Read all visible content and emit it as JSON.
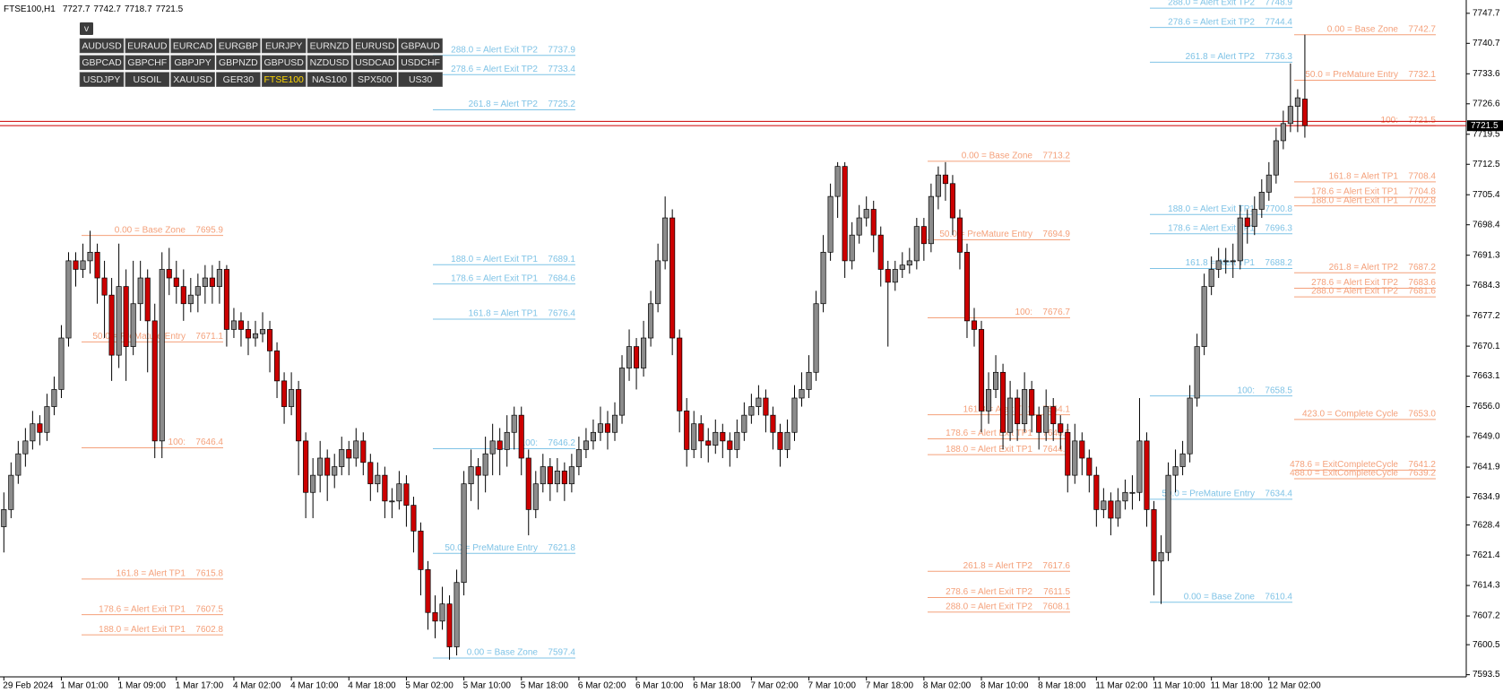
{
  "chart_data": {
    "type": "candlestick",
    "header": {
      "symbol": "FTSE100,H1",
      "ohlc": [
        7727.7,
        7742.7,
        7718.7,
        7721.5
      ]
    },
    "toggle": "v",
    "symbols": [
      "AUDUSD",
      "EURAUD",
      "EURCAD",
      "EURGBP",
      "EURJPY",
      "EURNZD",
      "EURUSD",
      "GBPAUD",
      "GBPCAD",
      "GBPCHF",
      "GBPJPY",
      "GBPNZD",
      "GBPUSD",
      "NZDUSD",
      "USDCAD",
      "USDCHF",
      "USDJPY",
      "USOIL",
      "XAUUSD",
      "GER30",
      "FTSE100",
      "NAS100",
      "SPX500",
      "US30"
    ],
    "active_symbol": "FTSE100",
    "bull_color": "#8c8c8c",
    "bear_color": "#cc0000",
    "ylim": [
      7593.0,
      7750.8
    ],
    "yticks": [
      7747.7,
      7740.7,
      7733.6,
      7726.6,
      7719.5,
      7712.5,
      7705.4,
      7698.4,
      7691.3,
      7684.3,
      7677.2,
      7670.1,
      7663.1,
      {
        "value": 7656,
        "label": "7656.0"
      },
      {
        "value": 7649,
        "label": "7649.0"
      },
      7641.9,
      7634.9,
      7628.4,
      7621.4,
      7614.3,
      7607.2,
      7600.5,
      7593.5
    ],
    "x_labels": [
      "29 Feb 2024",
      "1 Mar 01:00",
      "1 Mar 09:00",
      "1 Mar 17:00",
      "4 Mar 02:00",
      "4 Mar 10:00",
      "4 Mar 18:00",
      "5 Mar 02:00",
      "5 Mar 10:00",
      "5 Mar 18:00",
      "6 Mar 02:00",
      "6 Mar 10:00",
      "6 Mar 18:00",
      "7 Mar 02:00",
      "7 Mar 10:00",
      "7 Mar 18:00",
      "8 Mar 02:00",
      "8 Mar 10:00",
      "8 Mar 18:00",
      "11 Mar 02:00",
      "11 Mar 10:00",
      "11 Mar 18:00",
      "12 Mar 02:00"
    ],
    "bid": 7721.5,
    "ask": 7722.5,
    "price_color": "#cc0000",
    "candles": [
      [
        7628,
        7636,
        7622,
        7632
      ],
      [
        7632,
        7643,
        7630,
        7640
      ],
      [
        7640,
        7648,
        7638,
        7645
      ],
      [
        7645,
        7651,
        7642,
        7648
      ],
      [
        7648,
        7655,
        7646,
        7652
      ],
      [
        7652,
        7654,
        7647,
        7650
      ],
      [
        7650,
        7659,
        7648,
        7656
      ],
      [
        7656,
        7663,
        7654,
        7660
      ],
      [
        7660,
        7675,
        7658,
        7672
      ],
      [
        7672,
        7692,
        7670,
        7690
      ],
      [
        7690,
        7692,
        7684,
        7688
      ],
      [
        7688,
        7694,
        7686,
        7690
      ],
      [
        7690,
        7697,
        7687,
        7692
      ],
      [
        7692,
        7694,
        7680,
        7686
      ],
      [
        7686,
        7690,
        7672,
        7682
      ],
      [
        7682,
        7686,
        7662,
        7668
      ],
      [
        7668,
        7694,
        7665,
        7684
      ],
      [
        7684,
        7688,
        7662,
        7670
      ],
      [
        7670,
        7690,
        7668,
        7680
      ],
      [
        7680,
        7690,
        7676,
        7686
      ],
      [
        7686,
        7688,
        7664,
        7676
      ],
      [
        7676,
        7680,
        7644,
        7648
      ],
      [
        7648,
        7692,
        7644,
        7688
      ],
      [
        7688,
        7693,
        7682,
        7686
      ],
      [
        7686,
        7690,
        7680,
        7684
      ],
      [
        7684,
        7688,
        7676,
        7680
      ],
      [
        7680,
        7686,
        7678,
        7682
      ],
      [
        7682,
        7687,
        7678,
        7684
      ],
      [
        7684,
        7689,
        7680,
        7686
      ],
      [
        7686,
        7689,
        7680,
        7684
      ],
      [
        7684,
        7690,
        7680,
        7688
      ],
      [
        7688,
        7689,
        7670,
        7674
      ],
      [
        7674,
        7679,
        7672,
        7676
      ],
      [
        7676,
        7678,
        7670,
        7674
      ],
      [
        7674,
        7676,
        7668,
        7672
      ],
      [
        7672,
        7676,
        7670,
        7673
      ],
      [
        7673,
        7678,
        7671,
        7674
      ],
      [
        7674,
        7676,
        7664,
        7669
      ],
      [
        7669,
        7671,
        7658,
        7662
      ],
      [
        7662,
        7664,
        7652,
        7656
      ],
      [
        7656,
        7664,
        7654,
        7660
      ],
      [
        7660,
        7662,
        7640,
        7648
      ],
      [
        7648,
        7650,
        7630,
        7636
      ],
      [
        7636,
        7644,
        7630,
        7640
      ],
      [
        7640,
        7648,
        7636,
        7644
      ],
      [
        7644,
        7646,
        7634,
        7640
      ],
      [
        7640,
        7645,
        7637,
        7642
      ],
      [
        7642,
        7649,
        7640,
        7646
      ],
      [
        7646,
        7648,
        7640,
        7644
      ],
      [
        7644,
        7651,
        7642,
        7648
      ],
      [
        7648,
        7650,
        7640,
        7643
      ],
      [
        7643,
        7645,
        7634,
        7638
      ],
      [
        7638,
        7643,
        7636,
        7640
      ],
      [
        7640,
        7642,
        7630,
        7634
      ],
      [
        7634,
        7637,
        7630,
        7634
      ],
      [
        7634,
        7641,
        7632,
        7638
      ],
      [
        7638,
        7640,
        7628,
        7633
      ],
      [
        7633,
        7635,
        7622,
        7627
      ],
      [
        7627,
        7629,
        7612,
        7618
      ],
      [
        7618,
        7620,
        7604,
        7608
      ],
      [
        7608,
        7612,
        7602,
        7606
      ],
      [
        7606,
        7614,
        7604,
        7610
      ],
      [
        7610,
        7612,
        7597,
        7600
      ],
      [
        7600,
        7618,
        7598,
        7615
      ],
      [
        7615,
        7641,
        7612,
        7638
      ],
      [
        7638,
        7646,
        7634,
        7642
      ],
      [
        7642,
        7644,
        7632,
        7640
      ],
      [
        7640,
        7649,
        7636,
        7645
      ],
      [
        7645,
        7652,
        7640,
        7648
      ],
      [
        7648,
        7651,
        7640,
        7646
      ],
      [
        7646,
        7654,
        7642,
        7650
      ],
      [
        7650,
        7656,
        7646,
        7654
      ],
      [
        7654,
        7656,
        7640,
        7644
      ],
      [
        7644,
        7646,
        7626,
        7632
      ],
      [
        7632,
        7641,
        7630,
        7638
      ],
      [
        7638,
        7645,
        7636,
        7642
      ],
      [
        7642,
        7644,
        7634,
        7638
      ],
      [
        7638,
        7644,
        7636,
        7641
      ],
      [
        7641,
        7643,
        7634,
        7638
      ],
      [
        7638,
        7645,
        7636,
        7642
      ],
      [
        7642,
        7649,
        7640,
        7646
      ],
      [
        7646,
        7651,
        7644,
        7648
      ],
      [
        7648,
        7653,
        7646,
        7650
      ],
      [
        7650,
        7656,
        7648,
        7652
      ],
      [
        7652,
        7655,
        7646,
        7650
      ],
      [
        7650,
        7657,
        7648,
        7654
      ],
      [
        7654,
        7668,
        7652,
        7665
      ],
      [
        7665,
        7674,
        7662,
        7670
      ],
      [
        7670,
        7672,
        7660,
        7665
      ],
      [
        7665,
        7676,
        7663,
        7672
      ],
      [
        7672,
        7683,
        7670,
        7680
      ],
      [
        7680,
        7694,
        7678,
        7690
      ],
      [
        7690,
        7705,
        7688,
        7700
      ],
      [
        7700,
        7702,
        7668,
        7672
      ],
      [
        7672,
        7674,
        7650,
        7655
      ],
      [
        7655,
        7658,
        7642,
        7646
      ],
      [
        7646,
        7655,
        7644,
        7652
      ],
      [
        7652,
        7654,
        7644,
        7648
      ],
      [
        7648,
        7651,
        7643,
        7647
      ],
      [
        7647,
        7653,
        7645,
        7650
      ],
      [
        7650,
        7652,
        7644,
        7648
      ],
      [
        7648,
        7650,
        7642,
        7646
      ],
      [
        7646,
        7653,
        7644,
        7650
      ],
      [
        7650,
        7657,
        7648,
        7654
      ],
      [
        7654,
        7659,
        7652,
        7656
      ],
      [
        7656,
        7661,
        7654,
        7658
      ],
      [
        7658,
        7660,
        7650,
        7654
      ],
      [
        7654,
        7656,
        7646,
        7650
      ],
      [
        7650,
        7652,
        7642,
        7646
      ],
      [
        7646,
        7653,
        7644,
        7650
      ],
      [
        7650,
        7661,
        7648,
        7658
      ],
      [
        7658,
        7664,
        7656,
        7660
      ],
      [
        7660,
        7668,
        7658,
        7664
      ],
      [
        7664,
        7683,
        7662,
        7680
      ],
      [
        7680,
        7696,
        7678,
        7692
      ],
      [
        7692,
        7708,
        7690,
        7705
      ],
      [
        7705,
        7713,
        7700,
        7712
      ],
      [
        7712,
        7713,
        7686,
        7690
      ],
      [
        7690,
        7699,
        7688,
        7696
      ],
      [
        7696,
        7703,
        7694,
        7700
      ],
      [
        7700,
        7705,
        7698,
        7702
      ],
      [
        7702,
        7704,
        7692,
        7696
      ],
      [
        7696,
        7698,
        7684,
        7688
      ],
      [
        7688,
        7690,
        7670,
        7685
      ],
      [
        7685,
        7690,
        7683,
        7688
      ],
      [
        7688,
        7692,
        7686,
        7689
      ],
      [
        7689,
        7693,
        7687,
        7690
      ],
      [
        7690,
        7700,
        7688,
        7698
      ],
      [
        7698,
        7700,
        7690,
        7694
      ],
      [
        7694,
        7708,
        7692,
        7705
      ],
      [
        7705,
        7712,
        7702,
        7710
      ],
      [
        7710,
        7713,
        7704,
        7708
      ],
      [
        7708,
        7710,
        7696,
        7700
      ],
      [
        7700,
        7702,
        7688,
        7692
      ],
      [
        7692,
        7694,
        7672,
        7676
      ],
      [
        7676,
        7679,
        7670,
        7674
      ],
      [
        7674,
        7676,
        7650,
        7655
      ],
      [
        7655,
        7664,
        7652,
        7660
      ],
      [
        7660,
        7668,
        7658,
        7664
      ],
      [
        7664,
        7666,
        7646,
        7650
      ],
      [
        7650,
        7662,
        7648,
        7658
      ],
      [
        7658,
        7660,
        7648,
        7652
      ],
      [
        7652,
        7664,
        7650,
        7660
      ],
      [
        7660,
        7662,
        7650,
        7654
      ],
      [
        7654,
        7656,
        7646,
        7650
      ],
      [
        7650,
        7660,
        7648,
        7656
      ],
      [
        7656,
        7658,
        7648,
        7652
      ],
      [
        7652,
        7654,
        7646,
        7650
      ],
      [
        7650,
        7652,
        7636,
        7640
      ],
      [
        7640,
        7652,
        7638,
        7648
      ],
      [
        7648,
        7650,
        7640,
        7644
      ],
      [
        7644,
        7646,
        7636,
        7640
      ],
      [
        7640,
        7642,
        7628,
        7632
      ],
      [
        7632,
        7637,
        7630,
        7634
      ],
      [
        7634,
        7636,
        7626,
        7630
      ],
      [
        7630,
        7637,
        7628,
        7634
      ],
      [
        7634,
        7639,
        7632,
        7636
      ],
      [
        7636,
        7640,
        7632,
        7636
      ],
      [
        7636,
        7658,
        7634,
        7648
      ],
      [
        7648,
        7650,
        7628,
        7632
      ],
      [
        7632,
        7634,
        7612,
        7620
      ],
      [
        7620,
        7626,
        7610,
        7622
      ],
      [
        7622,
        7643,
        7620,
        7640
      ],
      [
        7640,
        7646,
        7636,
        7642
      ],
      [
        7642,
        7648,
        7640,
        7645
      ],
      [
        7645,
        7661,
        7643,
        7658
      ],
      [
        7658,
        7673,
        7656,
        7670
      ],
      [
        7670,
        7687,
        7668,
        7684
      ],
      [
        7684,
        7691,
        7682,
        7688
      ],
      [
        7688,
        7693,
        7686,
        7690
      ],
      [
        7690,
        7693,
        7687,
        7690
      ],
      [
        7690,
        7694,
        7686,
        7690
      ],
      [
        7690,
        7703,
        7688,
        7700
      ],
      [
        7700,
        7702,
        7694,
        7698
      ],
      [
        7698,
        7705,
        7696,
        7702
      ],
      [
        7702,
        7709,
        7700,
        7706
      ],
      [
        7706,
        7713,
        7704,
        7710
      ],
      [
        7710,
        7721,
        7708,
        7718
      ],
      [
        7718,
        7725,
        7716,
        7722
      ],
      [
        7722,
        7736,
        7720,
        7726
      ],
      [
        7726,
        7730,
        7720,
        7728
      ],
      [
        7727.7,
        7742.7,
        7718.7,
        7721.5
      ]
    ],
    "levels": [
      {
        "color": "#7fc3e6",
        "labels": [
          "288.0 = Alert Exit TP2",
          "278.6 = Alert Exit TP2",
          "261.8 = Alert TP2",
          "188.0 = Alert Exit TP1",
          "178.6 = Alert Exit TP1",
          "161.8 = Alert TP1",
          "100:",
          "50.0 = PreMature Entry",
          "0.00 = Base Zone"
        ],
        "values": [
          7737.9,
          7733.4,
          7725.2,
          7689.1,
          7684.6,
          7676.4,
          7646.2,
          7621.8,
          7597.4
        ],
        "value_labels": [
          "7737.9",
          "7733.4",
          "7725.2",
          "7689.1",
          "7684.6",
          "7676.4",
          "7646.2",
          "7621.8",
          "7597.4"
        ]
      },
      {
        "color": "#f4a07a",
        "labels": [
          "0.00 = Base Zone",
          "50.0 = PreMature Entry",
          "100:",
          "161.8 = Alert TP1",
          "178.6 = Alert Exit TP1",
          "188.0 = Alert Exit TP1"
        ],
        "values": [
          7695.9,
          7671.1,
          7646.4,
          7615.8,
          7607.5,
          7602.8
        ],
        "value_labels": [
          "7695.9",
          "7671.1",
          "7646.4",
          "7615.8",
          "7607.5",
          "7602.8"
        ]
      },
      {
        "color": "#f4a07a",
        "labels": [
          "0.00 = Base Zone",
          "50.0 = PreMature Entry",
          "100:",
          "161.8 = Alert TP1",
          "178.6 = Alert Exit TP1",
          "188.0 = Alert Exit TP1",
          "261.8 = Alert TP2",
          "278.6 = Alert Exit TP2",
          "288.0 = Alert Exit TP2"
        ],
        "values": [
          7713.2,
          7694.9,
          7676.7,
          7654.1,
          7648.5,
          7644.8,
          7617.6,
          7611.5,
          7608.1
        ],
        "value_labels": [
          "7713.2",
          "7694.9",
          "7676.7",
          "7654.1",
          "7648.5",
          "7644.8",
          "7617.6",
          "7611.5",
          "7608.1"
        ]
      },
      {
        "color": "#7fc3e6",
        "labels": [
          "288.0 = Alert Exit TP2",
          "278.6 = Alert Exit TP2",
          "261.8 = Alert TP2",
          "188.0 = Alert Exit TP1",
          "178.6 = Alert Exit TP1",
          "161.8 = Alert TP1",
          "100:",
          "50.0 = PreMature Entry",
          "0.00 = Base Zone"
        ],
        "values": [
          7748.9,
          7744.4,
          7736.3,
          7700.8,
          7696.3,
          7688.2,
          7658.5,
          7634.4,
          7610.4
        ],
        "value_labels": [
          "7748.9",
          "7744.4",
          "7736.3",
          "7700.8",
          "7696.3",
          "7688.2",
          "7658.5",
          "7634.4",
          "7610.4"
        ]
      },
      {
        "color": "#f4a07a",
        "labels": [
          "0.00 = Base Zone",
          "50.0 = PreMature Entry",
          "100:",
          "161.8 = Alert TP1",
          "178.6 = Alert Exit TP1",
          "188.0 = Alert Exit TP1",
          "261.8 = Alert TP2",
          "278.6 = Alert Exit TP2",
          "288.0 = Alert Exit TP2",
          "423.0 = Complete Cycle",
          "478.6 = ExitCompleteCycle",
          "488.0 = ExitCompleteCycle"
        ],
        "values": [
          7742.7,
          7732.1,
          7721.5,
          7708.4,
          7704.8,
          7702.8,
          7687.2,
          7683.6,
          7681.6,
          7653.0,
          7641.2,
          7639.2
        ],
        "value_labels": [
          "7742.7",
          "7732.1",
          "7721.5",
          "7708.4",
          "7704.8",
          "7702.8",
          "7687.2",
          "7683.6",
          "7681.6",
          "7653.0",
          "7641.2",
          "7639.2"
        ]
      }
    ]
  }
}
